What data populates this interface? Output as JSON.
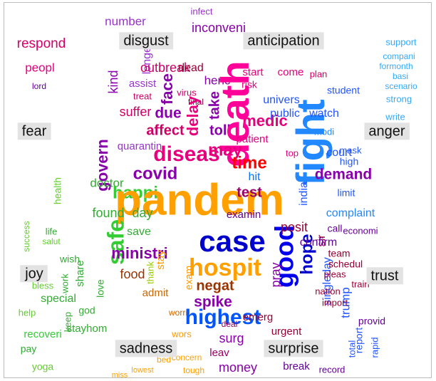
{
  "categories": [
    {
      "text": "disgust"
    },
    {
      "text": "anticipation"
    },
    {
      "text": "fear"
    },
    {
      "text": "anger"
    },
    {
      "text": "joy"
    },
    {
      "text": "trust"
    },
    {
      "text": "sadness"
    },
    {
      "text": "surprise"
    }
  ],
  "words": [
    {
      "text": "respond",
      "color": "#d4006a"
    },
    {
      "text": "number",
      "color": "#9933cc"
    },
    {
      "text": "infect",
      "color": "#9933cc"
    },
    {
      "text": "inconveni",
      "color": "#8800aa"
    },
    {
      "text": "peopl",
      "color": "#e6007e"
    },
    {
      "text": "lord",
      "color": "#660099"
    },
    {
      "text": "longer",
      "color": "#9933cc"
    },
    {
      "text": "outbreak",
      "color": "#cc0066"
    },
    {
      "text": "dead",
      "color": "#990033"
    },
    {
      "text": "henc",
      "color": "#8800aa"
    },
    {
      "text": "kind",
      "color": "#8800aa"
    },
    {
      "text": "assist",
      "color": "#9933cc"
    },
    {
      "text": "treat",
      "color": "#cc0066"
    },
    {
      "text": "suffer",
      "color": "#cc0066"
    },
    {
      "text": "face",
      "color": "#8800aa"
    },
    {
      "text": "virus",
      "color": "#cc0066"
    },
    {
      "text": "final",
      "color": "#660033"
    },
    {
      "text": "take",
      "color": "#8800aa"
    },
    {
      "text": "delay",
      "color": "#e6007e"
    },
    {
      "text": "due",
      "color": "#8800aa"
    },
    {
      "text": "affect",
      "color": "#cc0066"
    },
    {
      "text": "toll",
      "color": "#8800aa"
    },
    {
      "text": "medic",
      "color": "#e6007e"
    },
    {
      "text": "death",
      "color": "#ff0099"
    },
    {
      "text": "fight",
      "color": "#2288ff"
    },
    {
      "text": "diseas",
      "color": "#e6007e"
    },
    {
      "text": "may",
      "color": "#e6007e"
    },
    {
      "text": "time",
      "color": "#ff0000"
    },
    {
      "text": "hit",
      "color": "#0077ff"
    },
    {
      "text": "covid",
      "color": "#8800aa"
    },
    {
      "text": "quarantin",
      "color": "#9933cc"
    },
    {
      "text": "govern",
      "color": "#8800aa"
    },
    {
      "text": "doctor",
      "color": "#33aa33"
    },
    {
      "text": "happi",
      "color": "#33cc33"
    },
    {
      "text": "health",
      "color": "#66cc33"
    },
    {
      "text": "pandem",
      "color": "#ffa000"
    },
    {
      "text": "found",
      "color": "#33aa33"
    },
    {
      "text": "day",
      "color": "#33aa33"
    },
    {
      "text": "save",
      "color": "#33aa33"
    },
    {
      "text": "safe",
      "color": "#33cc33"
    },
    {
      "text": "ministri",
      "color": "#8800aa"
    },
    {
      "text": "food",
      "color": "#993300"
    },
    {
      "text": "case",
      "color": "#0000cc"
    },
    {
      "text": "hospit",
      "color": "#ffa000"
    },
    {
      "text": "test",
      "color": "#990066"
    },
    {
      "text": "examin",
      "color": "#660099"
    },
    {
      "text": "negat",
      "color": "#993300"
    },
    {
      "text": "spike",
      "color": "#8800aa"
    },
    {
      "text": "highest",
      "color": "#0055ff"
    },
    {
      "text": "good",
      "color": "#0000ee"
    },
    {
      "text": "hope",
      "color": "#0000cc"
    },
    {
      "text": "sir",
      "color": "#990033"
    },
    {
      "text": "pray",
      "color": "#8800aa"
    },
    {
      "text": "singleday",
      "color": "#2255ff"
    },
    {
      "text": "trump",
      "color": "#2255ff"
    },
    {
      "text": "posit",
      "color": "#990033"
    },
    {
      "text": "surg",
      "color": "#8800aa"
    },
    {
      "text": "emerg",
      "color": "#990033"
    },
    {
      "text": "urgent",
      "color": "#990033"
    },
    {
      "text": "money",
      "color": "#8800aa"
    },
    {
      "text": "break",
      "color": "#660099"
    },
    {
      "text": "record",
      "color": "#660099"
    },
    {
      "text": "leav",
      "color": "#990066"
    },
    {
      "text": "demand",
      "color": "#8800aa"
    },
    {
      "text": "court",
      "color": "#2255ff"
    },
    {
      "text": "india",
      "color": "#2255ff"
    },
    {
      "text": "limit",
      "color": "#2255ff"
    },
    {
      "text": "complaint",
      "color": "#2288ff"
    },
    {
      "text": "call",
      "color": "#660099"
    },
    {
      "text": "economi",
      "color": "#660099"
    },
    {
      "text": "confirm",
      "color": "#660099"
    },
    {
      "text": "team",
      "color": "#990033"
    },
    {
      "text": "schedul",
      "color": "#990033"
    },
    {
      "text": "pleas",
      "color": "#990033"
    },
    {
      "text": "train",
      "color": "#990033"
    },
    {
      "text": "nation",
      "color": "#990033"
    },
    {
      "text": "import",
      "color": "#990033"
    },
    {
      "text": "provid",
      "color": "#660099"
    },
    {
      "text": "report",
      "color": "#2255ff"
    },
    {
      "text": "rapid",
      "color": "#2255ff"
    },
    {
      "text": "total",
      "color": "#2255ff"
    },
    {
      "text": "start",
      "color": "#e6007e"
    },
    {
      "text": "come",
      "color": "#e6007e"
    },
    {
      "text": "risk",
      "color": "#e6007e"
    },
    {
      "text": "univers",
      "color": "#2255ff"
    },
    {
      "text": "public",
      "color": "#2255ff"
    },
    {
      "text": "watch",
      "color": "#2255ff"
    },
    {
      "text": "student",
      "color": "#2255ff"
    },
    {
      "text": "plan",
      "color": "#cc0066"
    },
    {
      "text": "patient",
      "color": "#e6007e"
    },
    {
      "text": "top",
      "color": "#e6007e"
    },
    {
      "text": "modi",
      "color": "#2288ff"
    },
    {
      "text": "high",
      "color": "#2255ff"
    },
    {
      "text": "mask",
      "color": "#2255ff"
    },
    {
      "text": "support",
      "color": "#33aaff"
    },
    {
      "text": "compani",
      "color": "#33aaff"
    },
    {
      "text": "formonth",
      "color": "#33aaff"
    },
    {
      "text": "basi",
      "color": "#33aaff"
    },
    {
      "text": "scenario",
      "color": "#33aaff"
    },
    {
      "text": "strong",
      "color": "#33aaff"
    },
    {
      "text": "write",
      "color": "#33aaff"
    },
    {
      "text": "success",
      "color": "#66cc33"
    },
    {
      "text": "life",
      "color": "#33aa33"
    },
    {
      "text": "wish",
      "color": "#33aa33"
    },
    {
      "text": "share",
      "color": "#33aa33"
    },
    {
      "text": "bless",
      "color": "#66cc33"
    },
    {
      "text": "special",
      "color": "#33aa33"
    },
    {
      "text": "help",
      "color": "#66cc33"
    },
    {
      "text": "god",
      "color": "#33aa33"
    },
    {
      "text": "stayhom",
      "color": "#33aa33"
    },
    {
      "text": "recoveri",
      "color": "#33cc33"
    },
    {
      "text": "pay",
      "color": "#33aa33"
    },
    {
      "text": "yoga",
      "color": "#66cc33"
    },
    {
      "text": "work",
      "color": "#33aa33"
    },
    {
      "text": "love",
      "color": "#33aa33"
    },
    {
      "text": "keep",
      "color": "#33aa33"
    },
    {
      "text": "thank",
      "color": "#99cc00"
    },
    {
      "text": "stay",
      "color": "#ff9900"
    },
    {
      "text": "exam",
      "color": "#ff9900"
    },
    {
      "text": "admit",
      "color": "#cc6600"
    },
    {
      "text": "worri",
      "color": "#cc6600"
    },
    {
      "text": "wors",
      "color": "#ff9900"
    },
    {
      "text": "deal",
      "color": "#990066"
    },
    {
      "text": "concern",
      "color": "#ffa000"
    },
    {
      "text": "tough",
      "color": "#ffa000"
    },
    {
      "text": "bed",
      "color": "#ffa000"
    },
    {
      "text": "lowest",
      "color": "#ffa000"
    },
    {
      "text": "miss",
      "color": "#ffa000"
    },
    {
      "text": "salut",
      "color": "#66cc33"
    }
  ]
}
